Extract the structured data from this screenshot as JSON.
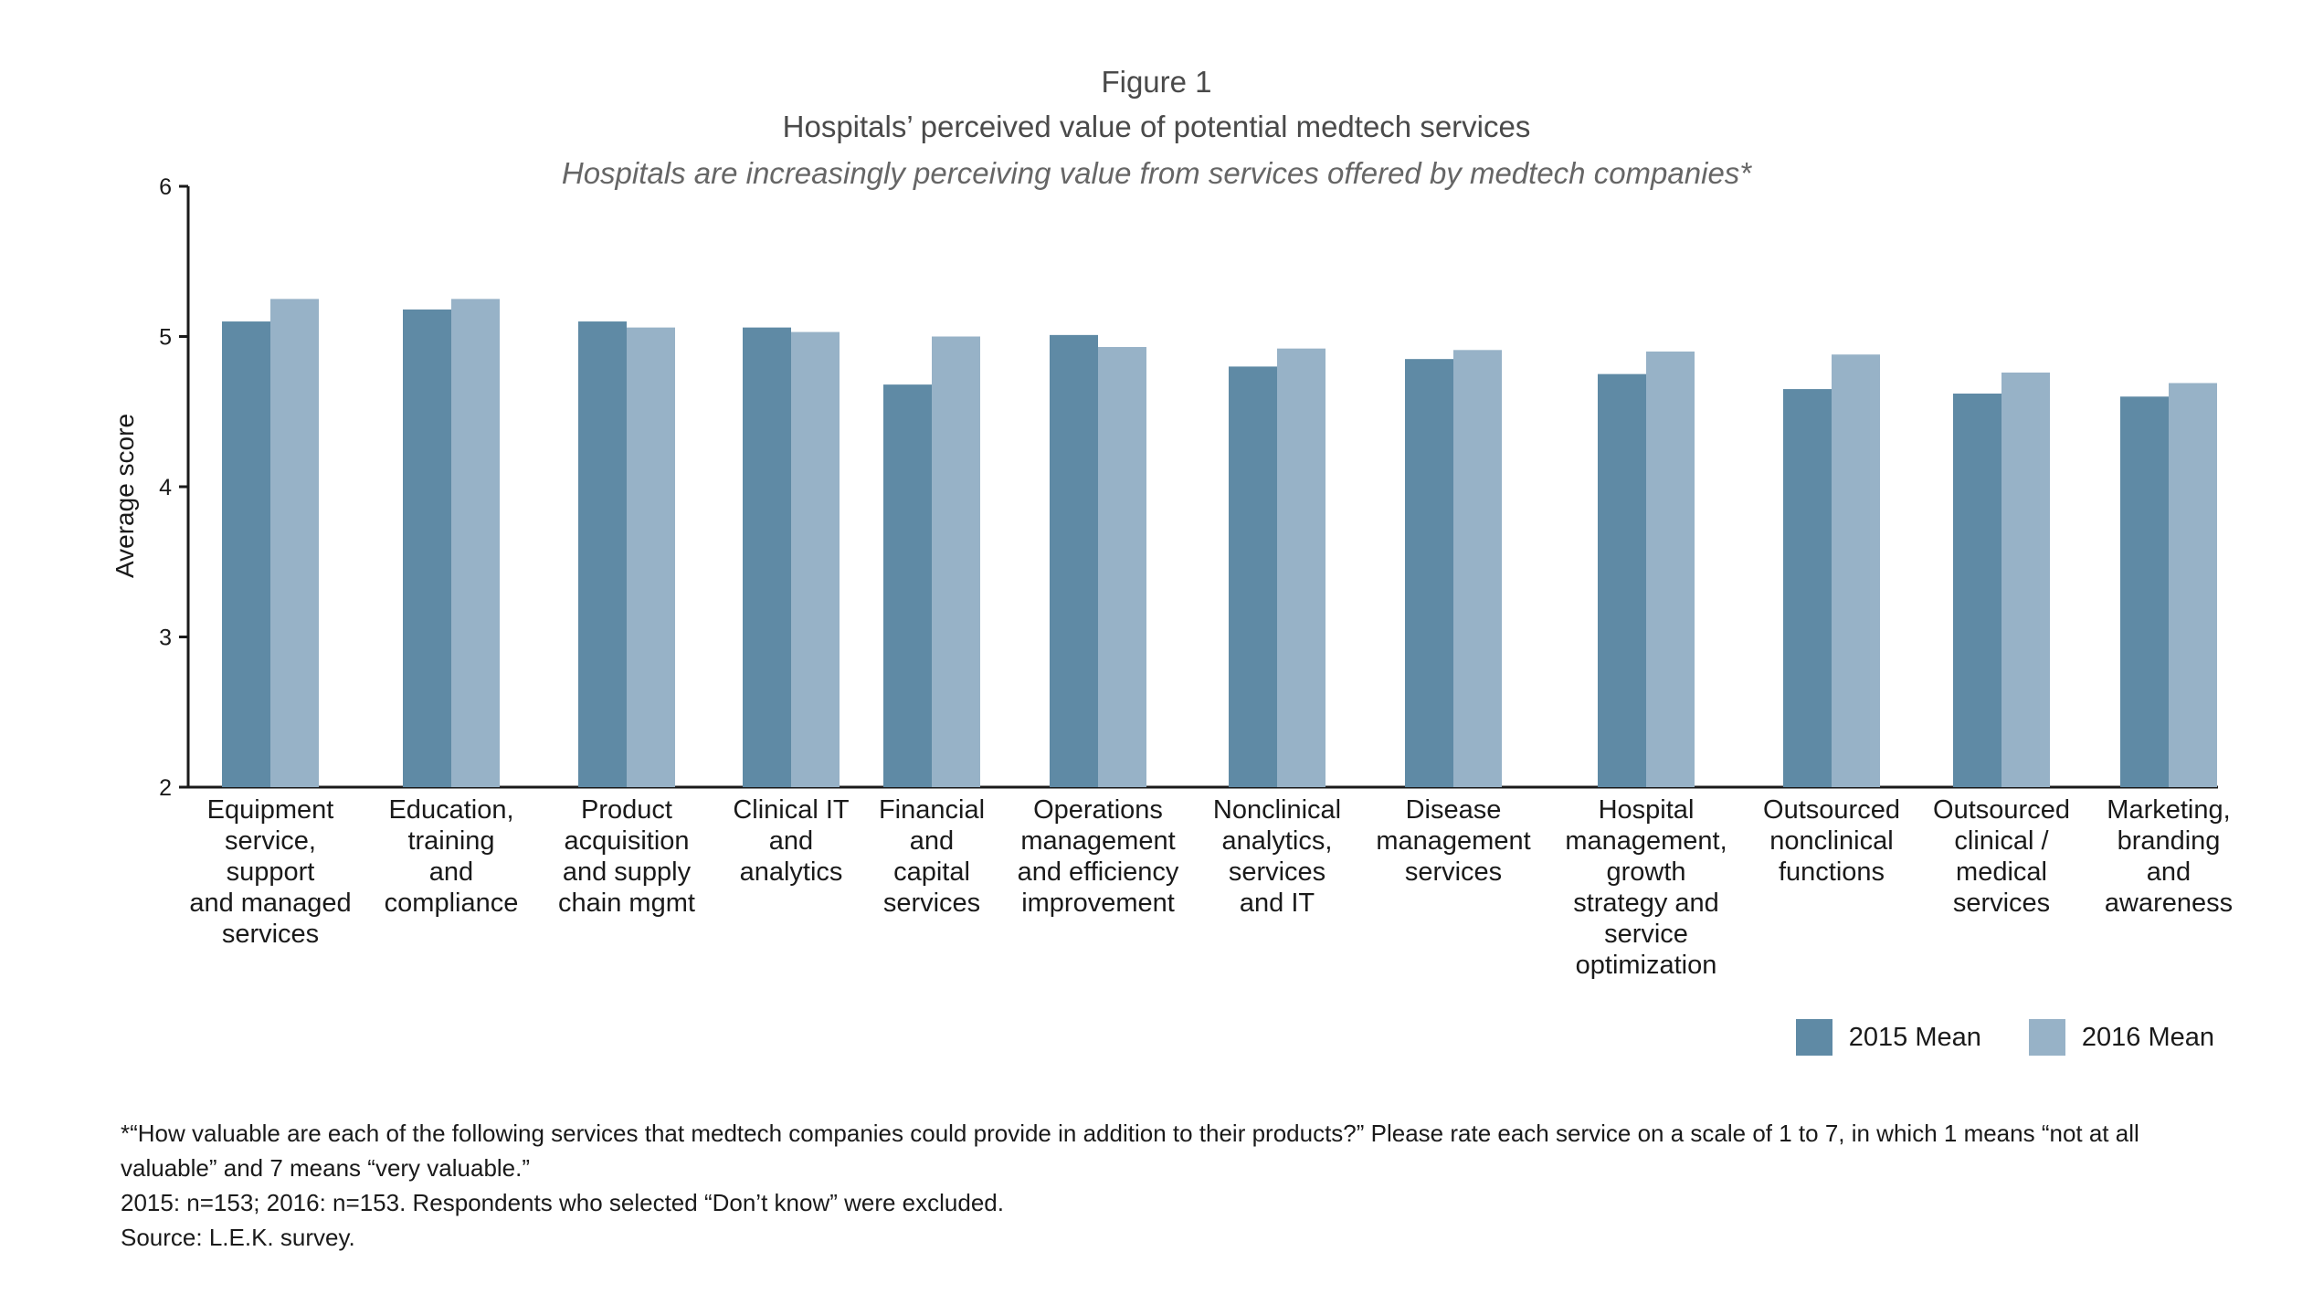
{
  "figure": {
    "label": "Figure 1",
    "title": "Hospitals’ perceived value of potential medtech services",
    "subtitle": "Hospitals are increasingly perceiving value from services offered by medtech companies*"
  },
  "colors": {
    "series_2015": "#5f8aa5",
    "series_2016": "#97b2c7",
    "axis": "#1a1a1a"
  },
  "chart_data": {
    "type": "bar",
    "ylabel": "Average score",
    "xlabel": "",
    "ylim": [
      2,
      6
    ],
    "yticks": [
      2,
      3,
      4,
      5,
      6
    ],
    "legend_position": "bottom-right",
    "grid": false,
    "categories": [
      [
        "Equipment",
        "service,",
        "support",
        "and managed",
        "services"
      ],
      [
        "Education,",
        "training",
        "and",
        "compliance"
      ],
      [
        "Product",
        "acquisition",
        "and supply",
        "chain mgmt"
      ],
      [
        "Clinical IT",
        "and",
        "analytics"
      ],
      [
        "Financial",
        "and",
        "capital",
        "services"
      ],
      [
        "Operations",
        "management",
        "and efficiency",
        "improvement"
      ],
      [
        "Nonclinical",
        "analytics,",
        "services",
        "and IT"
      ],
      [
        "Disease",
        "management",
        "services"
      ],
      [
        "Hospital",
        "management,",
        "growth",
        "strategy and",
        "service",
        "optimization"
      ],
      [
        "Outsourced",
        "nonclinical",
        "functions"
      ],
      [
        "Outsourced",
        "clinical /",
        "medical",
        "services"
      ],
      [
        "Marketing,",
        "branding",
        "and",
        "awareness"
      ]
    ],
    "series": [
      {
        "name": "2015 Mean",
        "values": [
          5.1,
          5.18,
          5.1,
          5.06,
          4.68,
          5.01,
          4.8,
          4.85,
          4.75,
          4.65,
          4.62,
          4.6
        ]
      },
      {
        "name": "2016 Mean",
        "values": [
          5.25,
          5.25,
          5.06,
          5.03,
          5.0,
          4.93,
          4.92,
          4.91,
          4.9,
          4.88,
          4.76,
          4.69
        ]
      }
    ]
  },
  "notes": {
    "question": "*“How valuable are each of the following services that medtech companies could provide in addition to their products?” Please rate each service on a scale of 1 to 7, in which 1 means “not at all valuable” and 7 means “very valuable.”",
    "sample": "2015: n=153; 2016: n=153. Respondents who selected “Don’t know” were excluded.",
    "source": "Source: L.E.K. survey."
  }
}
